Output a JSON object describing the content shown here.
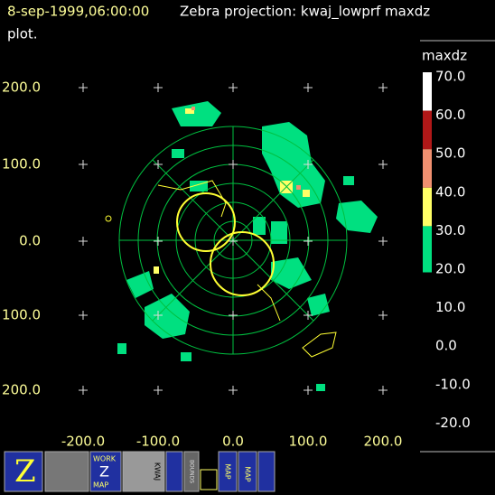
{
  "header": {
    "time": "8-sep-1999,06:00:00",
    "title": "Zebra projection: kwaj_lowprf maxdz",
    "subtitle": "plot."
  },
  "axes": {
    "x_labels": [
      "-200.0",
      "-100.0",
      "0.0",
      "100.0",
      "200.0"
    ],
    "y_labels": [
      "200.0",
      "100.0",
      "0.0",
      "100.0",
      "200.0"
    ]
  },
  "colorbar": {
    "title": "maxdz",
    "labels": [
      "70.0",
      "60.0",
      "50.0",
      "40.0",
      "30.0",
      "20.0",
      "10.0",
      "0.0",
      "-10.0",
      "-20.0"
    ],
    "colors": [
      "#ffffff",
      "#b01818",
      "#f09070",
      "#ffff66",
      "#00e080"
    ]
  },
  "toolbar": {
    "work": "WORK",
    "z": "Z",
    "map": "MAP",
    "bounds": "BOUNDS",
    "kwaj": "KWAJ",
    "map2": "MAP",
    "map3": "MAP"
  }
}
